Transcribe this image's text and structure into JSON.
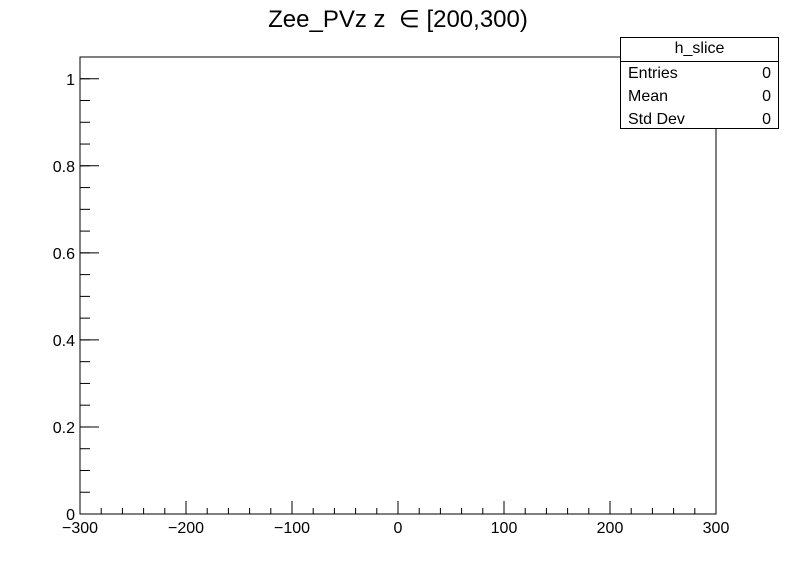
{
  "chart_data": {
    "type": "bar",
    "title": "Zee_PVz z  ∈ [200,300)",
    "xlabel": "",
    "ylabel": "",
    "xlim": [
      -300,
      300
    ],
    "ylim": [
      0,
      1.05
    ],
    "x_ticks": [
      -300,
      -200,
      -100,
      0,
      100,
      200,
      300
    ],
    "x_tick_labels": [
      "−300",
      "−200",
      "−100",
      "0",
      "100",
      "200",
      "300"
    ],
    "y_ticks": [
      0,
      0.2,
      0.4,
      0.6,
      0.8,
      1
    ],
    "y_tick_labels": [
      "0",
      "0.2",
      "0.4",
      "0.6",
      "0.8",
      "1"
    ],
    "series": [],
    "grid": false,
    "stats_box": {
      "name": "h_slice",
      "rows": [
        {
          "label": "Entries",
          "value": "0"
        },
        {
          "label": "Mean",
          "value": "0"
        },
        {
          "label": "Std Dev",
          "value": "0"
        }
      ]
    }
  }
}
